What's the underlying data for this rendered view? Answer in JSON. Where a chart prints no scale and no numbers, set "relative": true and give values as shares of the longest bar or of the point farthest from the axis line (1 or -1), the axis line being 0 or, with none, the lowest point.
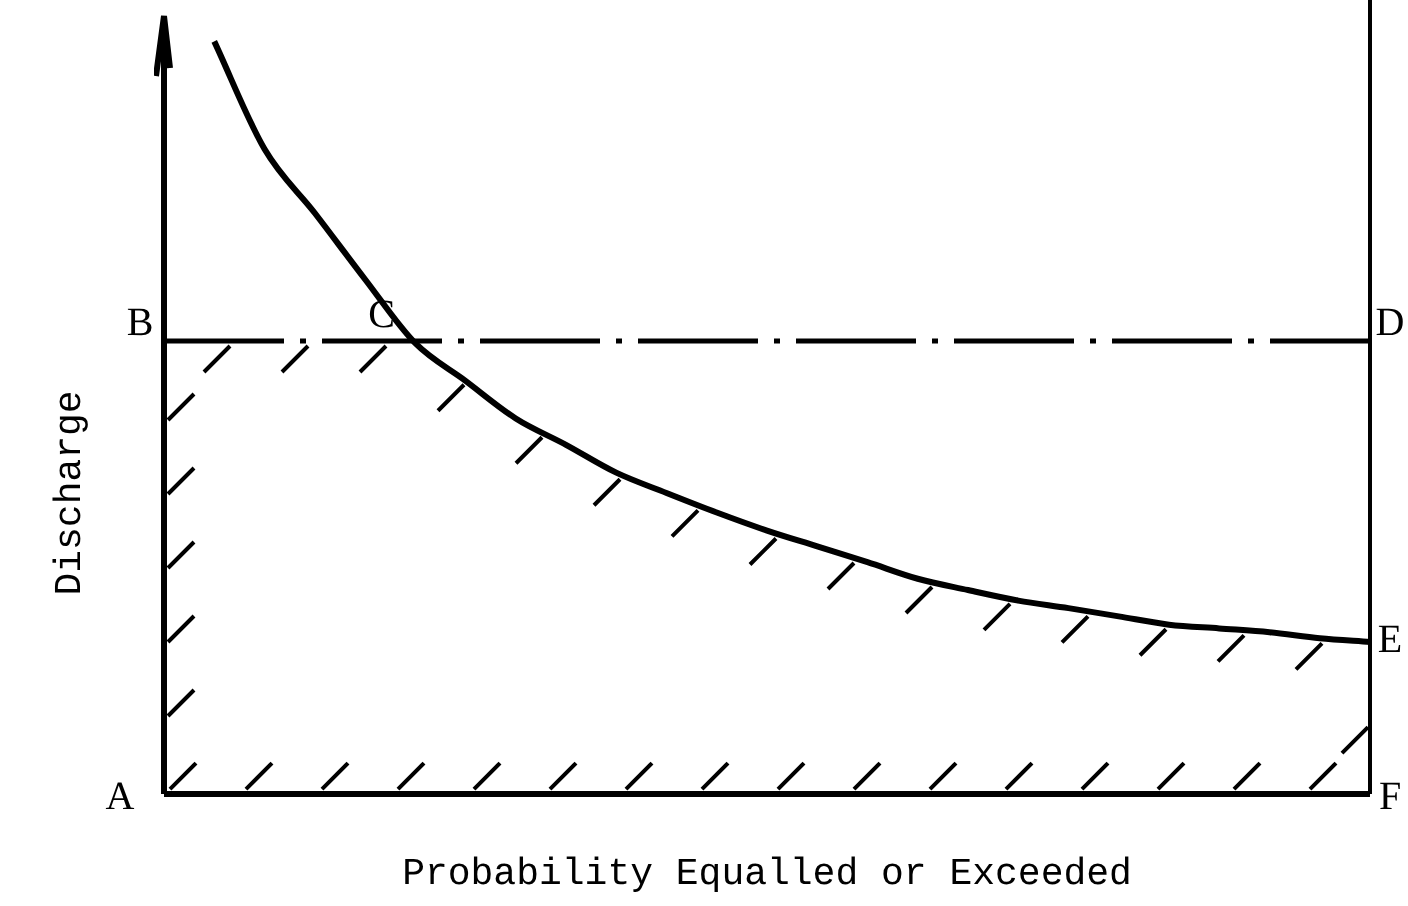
{
  "chart_data": {
    "type": "line",
    "relative": true,
    "xlabel": "Probability Equalled or Exceeded",
    "ylabel": "Discharge",
    "categories": [
      null,
      null,
      null,
      null,
      null,
      null,
      null,
      null,
      null,
      null,
      null,
      null,
      null,
      null,
      null,
      null,
      null,
      null,
      null,
      null,
      null,
      null,
      null,
      null,
      null
    ],
    "series": [
      {
        "color": "#000000",
        "values": [
          null,
          1.0,
          0.857,
          0.772,
          0.684,
          0.599,
          0.549,
          0.499,
          0.464,
          0.427,
          0.4,
          0.374,
          0.35,
          0.329,
          0.308,
          0.286,
          0.271,
          0.257,
          0.247,
          0.236,
          0.225,
          0.22,
          0.215,
          0.207,
          0.202
        ]
      }
    ],
    "ref_lines": [
      {
        "axis": "y",
        "value": 0.602,
        "color": "#000000",
        "line_style": "dashed"
      }
    ],
    "annotations": [
      "A",
      "B",
      "C",
      "D",
      "E",
      "F"
    ],
    "legend": false,
    "marker": "none",
    "line_style": "solid"
  }
}
